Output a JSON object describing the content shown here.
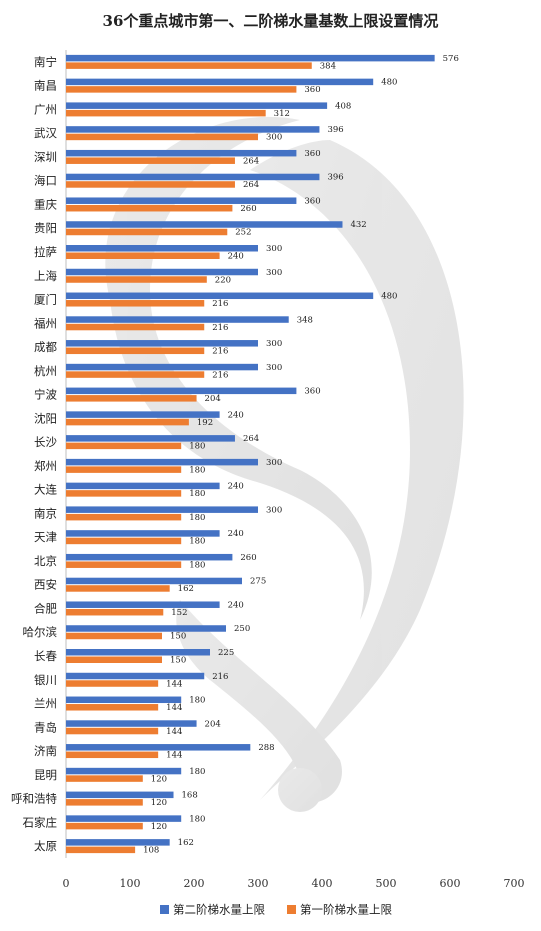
{
  "chart_data": {
    "type": "bar",
    "orientation": "horizontal",
    "title": "36个重点城市第一、二阶梯水量基数上限设置情况",
    "categories": [
      "南宁",
      "南昌",
      "广州",
      "武汉",
      "深圳",
      "海口",
      "重庆",
      "贵阳",
      "拉萨",
      "上海",
      "厦门",
      "福州",
      "成都",
      "杭州",
      "宁波",
      "沈阳",
      "长沙",
      "郑州",
      "大连",
      "南京",
      "天津",
      "北京",
      "西安",
      "合肥",
      "哈尔滨",
      "长春",
      "银川",
      "兰州",
      "青岛",
      "济南",
      "昆明",
      "呼和浩特",
      "石家庄",
      "太原"
    ],
    "series": [
      {
        "name": "第二阶梯水量上限",
        "color": "#4472C4",
        "values": [
          576,
          480,
          408,
          396,
          360,
          396,
          360,
          432,
          300,
          300,
          480,
          348,
          300,
          300,
          360,
          240,
          264,
          300,
          240,
          300,
          240,
          260,
          275,
          240,
          250,
          225,
          216,
          180,
          204,
          288,
          180,
          168,
          180,
          162
        ]
      },
      {
        "name": "第一阶梯水量上限",
        "color": "#ED7D31",
        "values": [
          384,
          360,
          312,
          300,
          264,
          264,
          260,
          252,
          240,
          220,
          216,
          216,
          216,
          216,
          204,
          192,
          180,
          180,
          180,
          180,
          180,
          180,
          162,
          152,
          150,
          150,
          144,
          144,
          144,
          144,
          120,
          120,
          120,
          108
        ]
      }
    ],
    "xlim": [
      0,
      700
    ],
    "xticks": [
      "0",
      "100",
      "200",
      "300",
      "400",
      "500",
      "600",
      "700"
    ],
    "legend_position": "bottom",
    "grid": false
  }
}
